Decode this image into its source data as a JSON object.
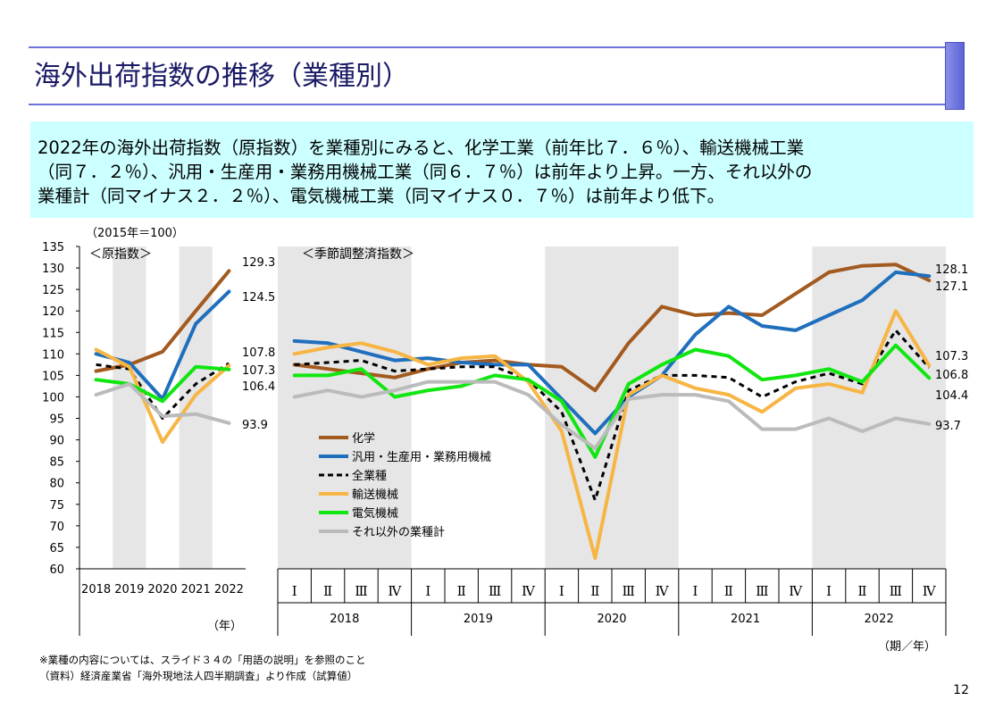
{
  "title": "海外出荷指数の推移（業種別）",
  "summary_lines": [
    "2022年の海外出荷指数（原指数）を業種別にみると、化学工業（前年比７．６％）、輸送機械工業",
    "（同７．２％）、汎用・生産用・業務用機械工業（同６．７％）は前年より上昇。一方、それ以外の",
    "業種計（同マイナス２．２％）、電気機械工業（同マイナス０．７％）は前年より低下。"
  ],
  "base_note": "（2015年＝100）",
  "page_number": "12",
  "footnotes": [
    "※業種の内容については、スライド３４の「用語の説明」を参照のこと",
    "（資料）経済産業省「海外現地法人四半期調査」より作成（試算値）"
  ],
  "colors": {
    "chemical": "#a35a1f",
    "machinery": "#1f6fbd",
    "all": "#000000",
    "transport": "#f7b544",
    "electric": "#11e611",
    "other": "#bbbbbb",
    "shade": "#e6e6e6"
  },
  "chart_data": {
    "type": "line",
    "ylim": [
      60,
      135
    ],
    "yticks": [
      60,
      65,
      70,
      75,
      80,
      85,
      90,
      95,
      100,
      105,
      110,
      115,
      120,
      125,
      130,
      135
    ],
    "panels": [
      {
        "name": "annual",
        "title": "＜原指数＞",
        "categories": [
          "2018",
          "2019",
          "2020",
          "2021",
          "2022"
        ],
        "xlabel": "（年）",
        "series": [
          {
            "key": "chemical",
            "name": "化学",
            "values": [
              106.0,
              107.5,
              110.5,
              120.0,
              129.3
            ]
          },
          {
            "key": "machinery",
            "name": "汎用・生産用・業務用機械",
            "values": [
              110.0,
              108.0,
              99.5,
              117.0,
              124.5
            ]
          },
          {
            "key": "all",
            "name": "全業種",
            "values": [
              107.5,
              106.5,
              95.0,
              103.0,
              107.8
            ]
          },
          {
            "key": "transport",
            "name": "輸送機械",
            "values": [
              111.0,
              107.0,
              89.5,
              100.5,
              107.3
            ]
          },
          {
            "key": "electric",
            "name": "電気機械",
            "values": [
              104.0,
              103.0,
              99.0,
              107.0,
              106.4
            ]
          },
          {
            "key": "other",
            "name": "それ以外の業種計",
            "values": [
              100.5,
              103.0,
              95.5,
              96.0,
              93.9
            ]
          }
        ],
        "end_labels": [
          "129.3",
          "124.5",
          "107.8",
          "107.3",
          "106.4",
          "93.9"
        ]
      },
      {
        "name": "quarterly",
        "title": "＜季節調整済指数＞",
        "quarters": [
          "Ⅰ",
          "Ⅱ",
          "Ⅲ",
          "Ⅳ"
        ],
        "years": [
          "2018",
          "2019",
          "2020",
          "2021",
          "2022"
        ],
        "xlabel": "（期／年）",
        "series": [
          {
            "key": "chemical",
            "name": "化学",
            "values": [
              107.5,
              106.5,
              105.5,
              104.5,
              106.5,
              108.0,
              108.5,
              107.5,
              107.0,
              101.5,
              112.5,
              121.0,
              119.0,
              119.5,
              119.0,
              124.0,
              129.0,
              130.5,
              130.8,
              127.1
            ]
          },
          {
            "key": "machinery",
            "name": "汎用・生産用・業務用機械",
            "values": [
              113.0,
              112.5,
              110.5,
              108.5,
              109.0,
              108.0,
              107.5,
              107.5,
              99.5,
              91.5,
              100.0,
              105.0,
              114.5,
              121.0,
              116.5,
              115.5,
              119.0,
              122.5,
              129.0,
              128.1
            ]
          },
          {
            "key": "all",
            "name": "全業種",
            "values": [
              107.5,
              108.0,
              108.5,
              106.0,
              106.5,
              107.0,
              107.0,
              104.0,
              96.5,
              76.0,
              101.5,
              105.0,
              105.0,
              104.5,
              100.0,
              103.5,
              105.5,
              103.0,
              115.5,
              106.8
            ]
          },
          {
            "key": "transport",
            "name": "輸送機械",
            "values": [
              110.0,
              111.5,
              112.5,
              110.5,
              107.5,
              109.0,
              109.5,
              103.5,
              92.0,
              62.5,
              100.5,
              105.0,
              102.0,
              100.5,
              96.5,
              102.0,
              103.0,
              101.0,
              120.0,
              107.3
            ]
          },
          {
            "key": "electric",
            "name": "電気機械",
            "values": [
              105.0,
              105.0,
              106.5,
              100.0,
              101.5,
              102.5,
              105.0,
              104.0,
              99.0,
              86.0,
              103.0,
              107.5,
              111.0,
              109.5,
              104.0,
              105.0,
              106.5,
              103.5,
              112.0,
              104.4
            ]
          },
          {
            "key": "other",
            "name": "それ以外の業種計",
            "values": [
              100.0,
              101.5,
              100.0,
              101.5,
              103.5,
              103.5,
              103.5,
              100.5,
              93.5,
              88.0,
              99.5,
              100.5,
              100.5,
              99.0,
              92.5,
              92.5,
              95.0,
              92.0,
              95.0,
              93.7
            ]
          }
        ],
        "end_labels": [
          "128.1",
          "127.1",
          "107.3",
          "106.8",
          "104.4",
          "93.7"
        ]
      }
    ],
    "legend_order": [
      "chemical",
      "machinery",
      "all",
      "transport",
      "electric",
      "other"
    ],
    "legend_position": "center"
  }
}
